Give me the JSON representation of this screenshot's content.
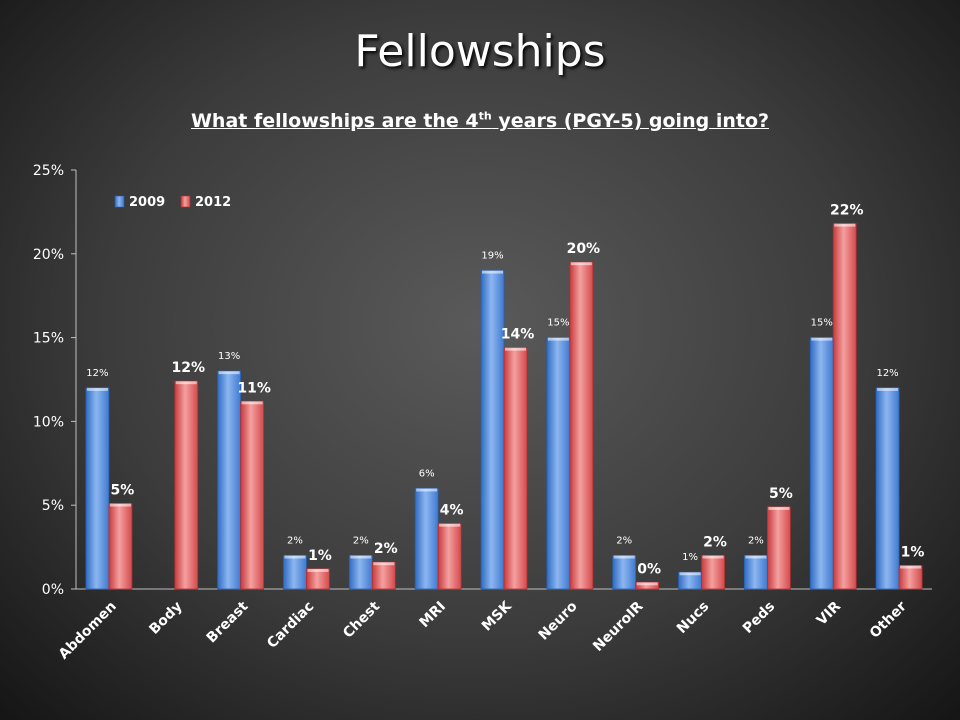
{
  "slide": {
    "title": "Fellowships"
  },
  "chart_title": {
    "prefix": "What fellowships are the 4",
    "superscript": "th",
    "suffix": " years (PGY-5) going into?"
  },
  "chart_data": {
    "type": "bar",
    "categories": [
      "Abdomen",
      "Body",
      "Breast",
      "Cardiac",
      "Chest",
      "MRI",
      "MSK",
      "Neuro",
      "NeuroIR",
      "Nucs",
      "Peds",
      "VIR",
      "Other"
    ],
    "series": [
      {
        "name": "2009",
        "color": "#4a86d8",
        "values": [
          12,
          null,
          13,
          2,
          2,
          6,
          19,
          15,
          2,
          1,
          2,
          15,
          12
        ],
        "labels": [
          "12%",
          "",
          "13%",
          "2%",
          "2%",
          "6%",
          "19%",
          "15%",
          "2%",
          "1%",
          "2%",
          "15%",
          "12%"
        ]
      },
      {
        "name": "2012",
        "color": "#e0585a",
        "values": [
          5.1,
          12.4,
          11.2,
          1.2,
          1.6,
          3.9,
          14.4,
          19.5,
          0.4,
          2.0,
          4.9,
          21.8,
          1.4
        ],
        "labels": [
          "5%",
          "12%",
          "11%",
          "1%",
          "2%",
          "4%",
          "14%",
          "20%",
          "0%",
          "2%",
          "5%",
          "22%",
          "1%"
        ]
      }
    ],
    "yticks": [
      "0%",
      "5%",
      "10%",
      "15%",
      "20%",
      "25%"
    ],
    "ylim": [
      0,
      25
    ],
    "legend_position": "top-left",
    "grid": false
  }
}
